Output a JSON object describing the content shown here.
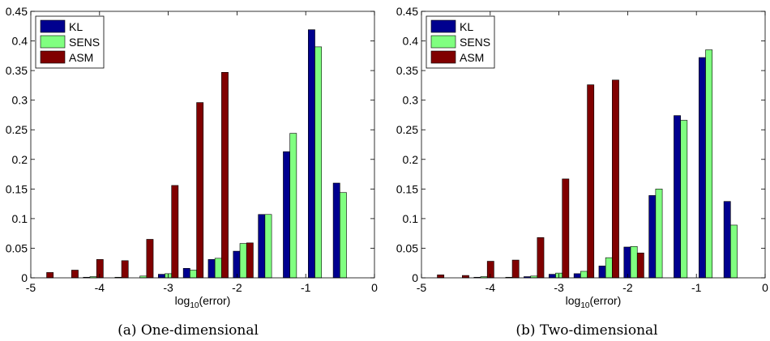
{
  "captions": [
    "(a) One-dimensional",
    "(b) Two-dimensional"
  ],
  "colors": {
    "KL": "#00008f",
    "SENS": "#80ff80",
    "ASM": "#800000"
  },
  "chart_data": [
    {
      "type": "bar",
      "caption": "(a) One-dimensional",
      "xlabel_base": "log",
      "xlabel_sub": "10",
      "xlabel_rest": "(error)",
      "xlim": [
        -5,
        0
      ],
      "ylim": [
        0,
        0.45
      ],
      "xticks": [
        -5,
        -4,
        -3,
        -2,
        -1,
        0
      ],
      "xtick_labels": [
        "-5",
        "-4",
        "-3",
        "-2",
        "-1",
        "0"
      ],
      "yticks": [
        0,
        0.05,
        0.1,
        0.15,
        0.2,
        0.25,
        0.3,
        0.35,
        0.4,
        0.45
      ],
      "ytick_labels": [
        "0",
        "0.05",
        "0.1",
        "0.15",
        "0.2",
        "0.25",
        "0.3",
        "0.35",
        "0.4",
        "0.45"
      ],
      "legend_position": "top-left",
      "grid": false,
      "x": [
        -4.818,
        -4.455,
        -4.091,
        -3.727,
        -3.364,
        -3.0,
        -2.636,
        -2.273,
        -1.909,
        -1.545,
        -1.182,
        -0.818,
        -0.455
      ],
      "series": [
        {
          "name": "KL",
          "values": [
            0,
            0,
            0.001,
            0,
            0,
            0.006,
            0.016,
            0.031,
            0.045,
            0.107,
            0.213,
            0.419,
            0.16
          ]
        },
        {
          "name": "SENS",
          "values": [
            0,
            0,
            0.002,
            0.001,
            0.003,
            0.007,
            0.013,
            0.033,
            0.058,
            0.107,
            0.244,
            0.39,
            0.144
          ]
        },
        {
          "name": "ASM",
          "values": [
            0.009,
            0.013,
            0.031,
            0.029,
            0.065,
            0.156,
            0.296,
            0.347,
            0.059,
            0,
            0,
            0,
            0
          ]
        }
      ]
    },
    {
      "type": "bar",
      "caption": "(b) Two-dimensional",
      "xlabel_base": "log",
      "xlabel_sub": "10",
      "xlabel_rest": "(error)",
      "xlim": [
        -5,
        0
      ],
      "ylim": [
        0,
        0.45
      ],
      "xticks": [
        -5,
        -4,
        -3,
        -2,
        -1,
        0
      ],
      "xtick_labels": [
        "-5",
        "-4",
        "-3",
        "-2",
        "-1",
        "0"
      ],
      "yticks": [
        0,
        0.05,
        0.1,
        0.15,
        0.2,
        0.25,
        0.3,
        0.35,
        0.4,
        0.45
      ],
      "ytick_labels": [
        "0",
        "0.05",
        "0.1",
        "0.15",
        "0.2",
        "0.25",
        "0.3",
        "0.35",
        "0.4",
        "0.45"
      ],
      "legend_position": "top-left",
      "grid": false,
      "x": [
        -4.818,
        -4.455,
        -4.091,
        -3.727,
        -3.364,
        -3.0,
        -2.636,
        -2.273,
        -1.909,
        -1.545,
        -1.182,
        -0.818,
        -0.455
      ],
      "series": [
        {
          "name": "KL",
          "values": [
            0,
            0,
            0.001,
            0,
            0.002,
            0.006,
            0.007,
            0.02,
            0.052,
            0.139,
            0.274,
            0.372,
            0.129
          ]
        },
        {
          "name": "SENS",
          "values": [
            0,
            0,
            0.002,
            0.001,
            0.003,
            0.008,
            0.011,
            0.034,
            0.053,
            0.15,
            0.266,
            0.385,
            0.089
          ]
        },
        {
          "name": "ASM",
          "values": [
            0.005,
            0.004,
            0.028,
            0.03,
            0.068,
            0.167,
            0.326,
            0.334,
            0.042,
            0,
            0,
            0,
            0
          ]
        }
      ]
    }
  ]
}
